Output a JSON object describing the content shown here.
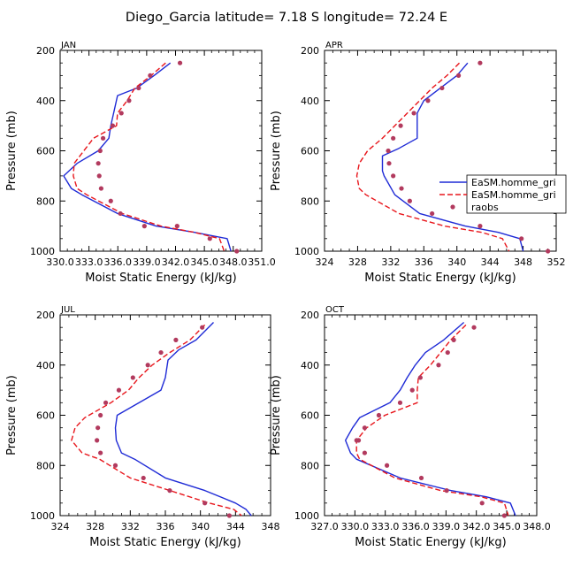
{
  "figure": {
    "title": "Diego_Garcia   latitude= 7.18 S longitude= 72.24 E"
  },
  "legend": {
    "entries": [
      {
        "label": "EaSM.homme_gri",
        "color": "#1f2bd6",
        "style": "solid"
      },
      {
        "label": "EaSM.homme_gri",
        "color": "#e8151b",
        "style": "dashed"
      },
      {
        "label": "raobs",
        "color": "#b23a5e",
        "style": "dot"
      }
    ]
  },
  "chart_data": [
    {
      "type": "line",
      "title": "JAN",
      "xlabel": "Moist Static Energy (kJ/kg)",
      "ylabel": "Pressure (mb)",
      "xlim": [
        330.0333,
        351.0
      ],
      "ylim": [
        1000,
        200
      ],
      "xticks": [
        330.0333,
        333.0333,
        336.0333,
        339.0333,
        342.0333,
        345.0333,
        348.0333,
        351.0
      ],
      "xtick_labels": [
        "330.0",
        "333.0",
        "336.0",
        "339.0",
        "342.0",
        "345.0",
        "348.0",
        "351.0"
      ],
      "yticks": [
        200,
        400,
        600,
        800,
        1000
      ],
      "series": [
        {
          "name": "EaSM.homme_gri",
          "style": "solid",
          "color": "#1f2bd6",
          "x": [
            341.5,
            339.8,
            338.0,
            336.0,
            335.6,
            335.3,
            335.1,
            334.0,
            331.8,
            330.4,
            331.2,
            332.3,
            336.0,
            340.0,
            344.0,
            347.4,
            347.8
          ],
          "y": [
            250,
            300,
            350,
            380,
            450,
            500,
            550,
            600,
            650,
            700,
            750,
            775,
            850,
            900,
            925,
            950,
            1000
          ]
        },
        {
          "name": "EaSM.homme_gri",
          "style": "dashed",
          "color": "#e8151b",
          "x": [
            341.0,
            339.5,
            337.8,
            337.0,
            336.0,
            335.9,
            333.5,
            332.5,
            331.5,
            331.4,
            331.8,
            332.8,
            336.5,
            340.5,
            344.0,
            346.6,
            347.1
          ],
          "y": [
            250,
            300,
            350,
            400,
            450,
            500,
            550,
            600,
            650,
            700,
            750,
            775,
            850,
            900,
            925,
            950,
            1000
          ]
        },
        {
          "name": "raobs",
          "style": "dot",
          "color": "#b23a5e",
          "x": [
            342.5,
            339.4,
            338.2,
            337.2,
            336.4,
            335.5,
            334.5,
            334.2,
            334.0,
            334.1,
            334.3,
            335.3,
            336.3,
            338.8,
            342.2,
            345.6,
            348.4
          ],
          "y": [
            250,
            300,
            350,
            400,
            450,
            500,
            550,
            600,
            650,
            700,
            750,
            800,
            850,
            900,
            900,
            950,
            1000
          ]
        }
      ]
    },
    {
      "type": "line",
      "title": "APR",
      "xlabel": "Moist Static Energy (kJ/kg)",
      "ylabel": "Pressure (mb)",
      "xlim": [
        324,
        352
      ],
      "ylim": [
        1000,
        200
      ],
      "xticks": [
        324,
        328,
        332,
        336,
        340,
        344,
        348,
        352
      ],
      "xtick_labels": [
        "324",
        "328",
        "332",
        "336",
        "340",
        "344",
        "348",
        "352"
      ],
      "yticks": [
        200,
        400,
        600,
        800,
        1000
      ],
      "series": [
        {
          "name": "EaSM.homme_gri",
          "style": "solid",
          "color": "#1f2bd6",
          "x": [
            341.3,
            340.0,
            338.0,
            336.0,
            335.2,
            335.2,
            335.2,
            333.0,
            331.0,
            331.0,
            331.2,
            332.5,
            335.5,
            341.0,
            345.0,
            347.6,
            348.0
          ],
          "y": [
            250,
            300,
            350,
            400,
            450,
            500,
            550,
            590,
            620,
            680,
            700,
            775,
            850,
            900,
            925,
            950,
            1000
          ]
        },
        {
          "name": "EaSM.homme_gri",
          "style": "dashed",
          "color": "#e8151b",
          "x": [
            340.3,
            338.8,
            337.0,
            335.5,
            334.0,
            332.5,
            331.0,
            329.2,
            328.2,
            327.9,
            328.2,
            329.0,
            333.0,
            338.5,
            343.0,
            345.5,
            346.3
          ],
          "y": [
            250,
            300,
            350,
            400,
            450,
            500,
            550,
            600,
            650,
            700,
            750,
            775,
            850,
            900,
            925,
            950,
            1000
          ]
        },
        {
          "name": "raobs",
          "style": "dot",
          "color": "#b23a5e",
          "x": [
            342.8,
            340.2,
            338.2,
            336.5,
            334.8,
            333.2,
            332.3,
            331.7,
            331.8,
            332.3,
            333.3,
            334.3,
            337.0,
            342.8,
            347.8,
            351.0
          ],
          "y": [
            250,
            300,
            350,
            400,
            450,
            500,
            550,
            600,
            650,
            700,
            750,
            800,
            850,
            900,
            950,
            1000
          ]
        }
      ]
    },
    {
      "type": "line",
      "title": "JUL",
      "xlabel": "Moist Static Energy (kJ/kg)",
      "ylabel": "Pressure (mb)",
      "xlim": [
        324,
        348
      ],
      "ylim": [
        1000,
        200
      ],
      "xticks": [
        324,
        328,
        332,
        336,
        340,
        344,
        348
      ],
      "xtick_labels": [
        "324",
        "328",
        "332",
        "336",
        "340",
        "344",
        "348"
      ],
      "yticks": [
        200,
        400,
        600,
        800,
        1000
      ],
      "series": [
        {
          "name": "EaSM.homme_gri",
          "style": "solid",
          "color": "#1f2bd6",
          "x": [
            341.5,
            339.5,
            337.5,
            336.3,
            336.0,
            335.5,
            334.0,
            330.5,
            330.3,
            330.4,
            331.0,
            332.5,
            336.0,
            340.5,
            344.0,
            345.2,
            345.8
          ],
          "y": [
            230,
            300,
            340,
            380,
            450,
            500,
            530,
            600,
            650,
            700,
            750,
            775,
            850,
            900,
            950,
            975,
            1000
          ]
        },
        {
          "name": "EaSM.homme_gri",
          "style": "dashed",
          "color": "#e8151b",
          "x": [
            340.5,
            338.8,
            336.5,
            334.5,
            333.0,
            331.8,
            329.8,
            326.8,
            325.7,
            325.3,
            326.5,
            328.5,
            332.0,
            336.5,
            341.0,
            343.8,
            344.7
          ],
          "y": [
            240,
            300,
            350,
            400,
            450,
            500,
            550,
            610,
            650,
            700,
            750,
            775,
            850,
            900,
            950,
            975,
            1000
          ]
        },
        {
          "name": "raobs",
          "style": "dot",
          "color": "#b23a5e",
          "x": [
            340.2,
            337.2,
            335.5,
            334.0,
            332.3,
            330.7,
            329.2,
            328.6,
            328.3,
            328.2,
            328.6,
            330.3,
            333.5,
            336.5,
            340.5,
            343.3
          ],
          "y": [
            250,
            300,
            350,
            400,
            450,
            500,
            550,
            600,
            650,
            700,
            750,
            800,
            850,
            900,
            950,
            1000
          ]
        }
      ]
    },
    {
      "type": "line",
      "title": "OCT",
      "xlabel": "Moist Static Energy (kJ/kg)",
      "ylabel": "Pressure (mb)",
      "xlim": [
        327.0333,
        348.0
      ],
      "ylim": [
        1000,
        200
      ],
      "xticks": [
        327.0333,
        330.0333,
        333.0333,
        336.0333,
        339.0333,
        342.0333,
        345.0333,
        348.0
      ],
      "xtick_labels": [
        "327.0",
        "330.0",
        "333.0",
        "336.0",
        "339.0",
        "342.0",
        "345.0",
        "348.0"
      ],
      "yticks": [
        200,
        400,
        600,
        800,
        1000
      ],
      "series": [
        {
          "name": "EaSM.homme_gri",
          "style": "solid",
          "color": "#1f2bd6",
          "x": [
            340.8,
            338.8,
            337.0,
            336.0,
            335.2,
            334.5,
            333.5,
            330.5,
            329.8,
            329.1,
            329.6,
            330.2,
            334.5,
            339.5,
            343.0,
            345.4,
            345.9
          ],
          "y": [
            230,
            300,
            350,
            400,
            450,
            500,
            550,
            610,
            650,
            700,
            750,
            775,
            850,
            900,
            925,
            950,
            1000
          ]
        },
        {
          "name": "EaSM.homme_gri",
          "style": "dashed",
          "color": "#e8151b",
          "x": [
            341.0,
            339.5,
            338.5,
            337.5,
            336.3,
            336.2,
            336.2,
            333.0,
            331.2,
            330.2,
            330.2,
            330.5,
            334.0,
            338.5,
            342.5,
            344.8,
            345.2
          ],
          "y": [
            240,
            300,
            350,
            400,
            450,
            500,
            550,
            600,
            650,
            700,
            750,
            775,
            850,
            900,
            925,
            950,
            1000
          ]
        },
        {
          "name": "raobs",
          "style": "dot",
          "color": "#b23a5e",
          "x": [
            341.8,
            339.8,
            339.2,
            338.3,
            336.5,
            335.7,
            334.5,
            332.4,
            331.0,
            330.4,
            330.2,
            331.0,
            333.2,
            336.6,
            339.1,
            342.6,
            344.8
          ],
          "y": [
            250,
            300,
            350,
            400,
            450,
            500,
            550,
            600,
            650,
            700,
            700,
            750,
            800,
            850,
            900,
            950,
            1000
          ]
        }
      ]
    }
  ]
}
